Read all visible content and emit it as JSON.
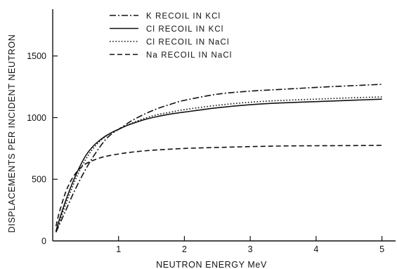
{
  "chart_data": {
    "type": "line",
    "xlabel": "NEUTRON ENERGY MeV",
    "ylabel": "DISPLACEMENTS PER INCIDENT NEUTRON",
    "xlim": [
      0,
      5.25
    ],
    "ylim": [
      0,
      1880
    ],
    "x_ticks": [
      1,
      2,
      3,
      4,
      5
    ],
    "y_ticks": [
      0,
      500,
      1000,
      1500
    ],
    "grid": false,
    "legend_position": "top-center",
    "series": [
      {
        "name": "K RECOIL IN KCl",
        "style": "dash-dot",
        "x": [
          0.05,
          0.1,
          0.2,
          0.3,
          0.4,
          0.5,
          0.6,
          0.7,
          0.8,
          0.9,
          1.0,
          1.1,
          1.2,
          1.4,
          1.6,
          1.8,
          2.0,
          2.5,
          3.0,
          3.5,
          4.0,
          4.5,
          5.0
        ],
        "y": [
          70,
          130,
          250,
          370,
          480,
          580,
          670,
          750,
          820,
          870,
          905,
          940,
          975,
          1030,
          1075,
          1110,
          1140,
          1190,
          1215,
          1230,
          1245,
          1258,
          1270
        ]
      },
      {
        "name": "Cl RECOIL IN KCl",
        "style": "solid",
        "x": [
          0.05,
          0.1,
          0.2,
          0.3,
          0.4,
          0.5,
          0.6,
          0.7,
          0.8,
          0.9,
          1.0,
          1.1,
          1.2,
          1.4,
          1.6,
          1.8,
          2.0,
          2.5,
          3.0,
          3.5,
          4.0,
          4.5,
          5.0
        ],
        "y": [
          80,
          170,
          330,
          470,
          590,
          690,
          760,
          810,
          850,
          880,
          905,
          930,
          950,
          985,
          1010,
          1030,
          1045,
          1080,
          1105,
          1120,
          1130,
          1140,
          1150
        ]
      },
      {
        "name": "Cl RECOIL IN NaCl",
        "style": "dotted",
        "x": [
          0.05,
          0.1,
          0.2,
          0.3,
          0.4,
          0.5,
          0.6,
          0.7,
          0.8,
          0.9,
          1.0,
          1.1,
          1.2,
          1.4,
          1.6,
          1.8,
          2.0,
          2.5,
          3.0,
          3.5,
          4.0,
          4.5,
          5.0
        ],
        "y": [
          75,
          150,
          300,
          440,
          560,
          660,
          740,
          800,
          845,
          880,
          905,
          930,
          955,
          995,
          1025,
          1045,
          1065,
          1100,
          1125,
          1140,
          1150,
          1160,
          1168
        ]
      },
      {
        "name": "Na RECOIL IN NaCl",
        "style": "dashed",
        "x": [
          0.05,
          0.1,
          0.2,
          0.3,
          0.4,
          0.5,
          0.6,
          0.7,
          0.8,
          1.0,
          1.2,
          1.5,
          2.0,
          2.5,
          3.0,
          3.5,
          4.0,
          4.5,
          5.0
        ],
        "y": [
          120,
          230,
          400,
          510,
          580,
          625,
          650,
          670,
          685,
          705,
          720,
          735,
          750,
          758,
          765,
          770,
          772,
          773,
          775
        ]
      }
    ]
  }
}
